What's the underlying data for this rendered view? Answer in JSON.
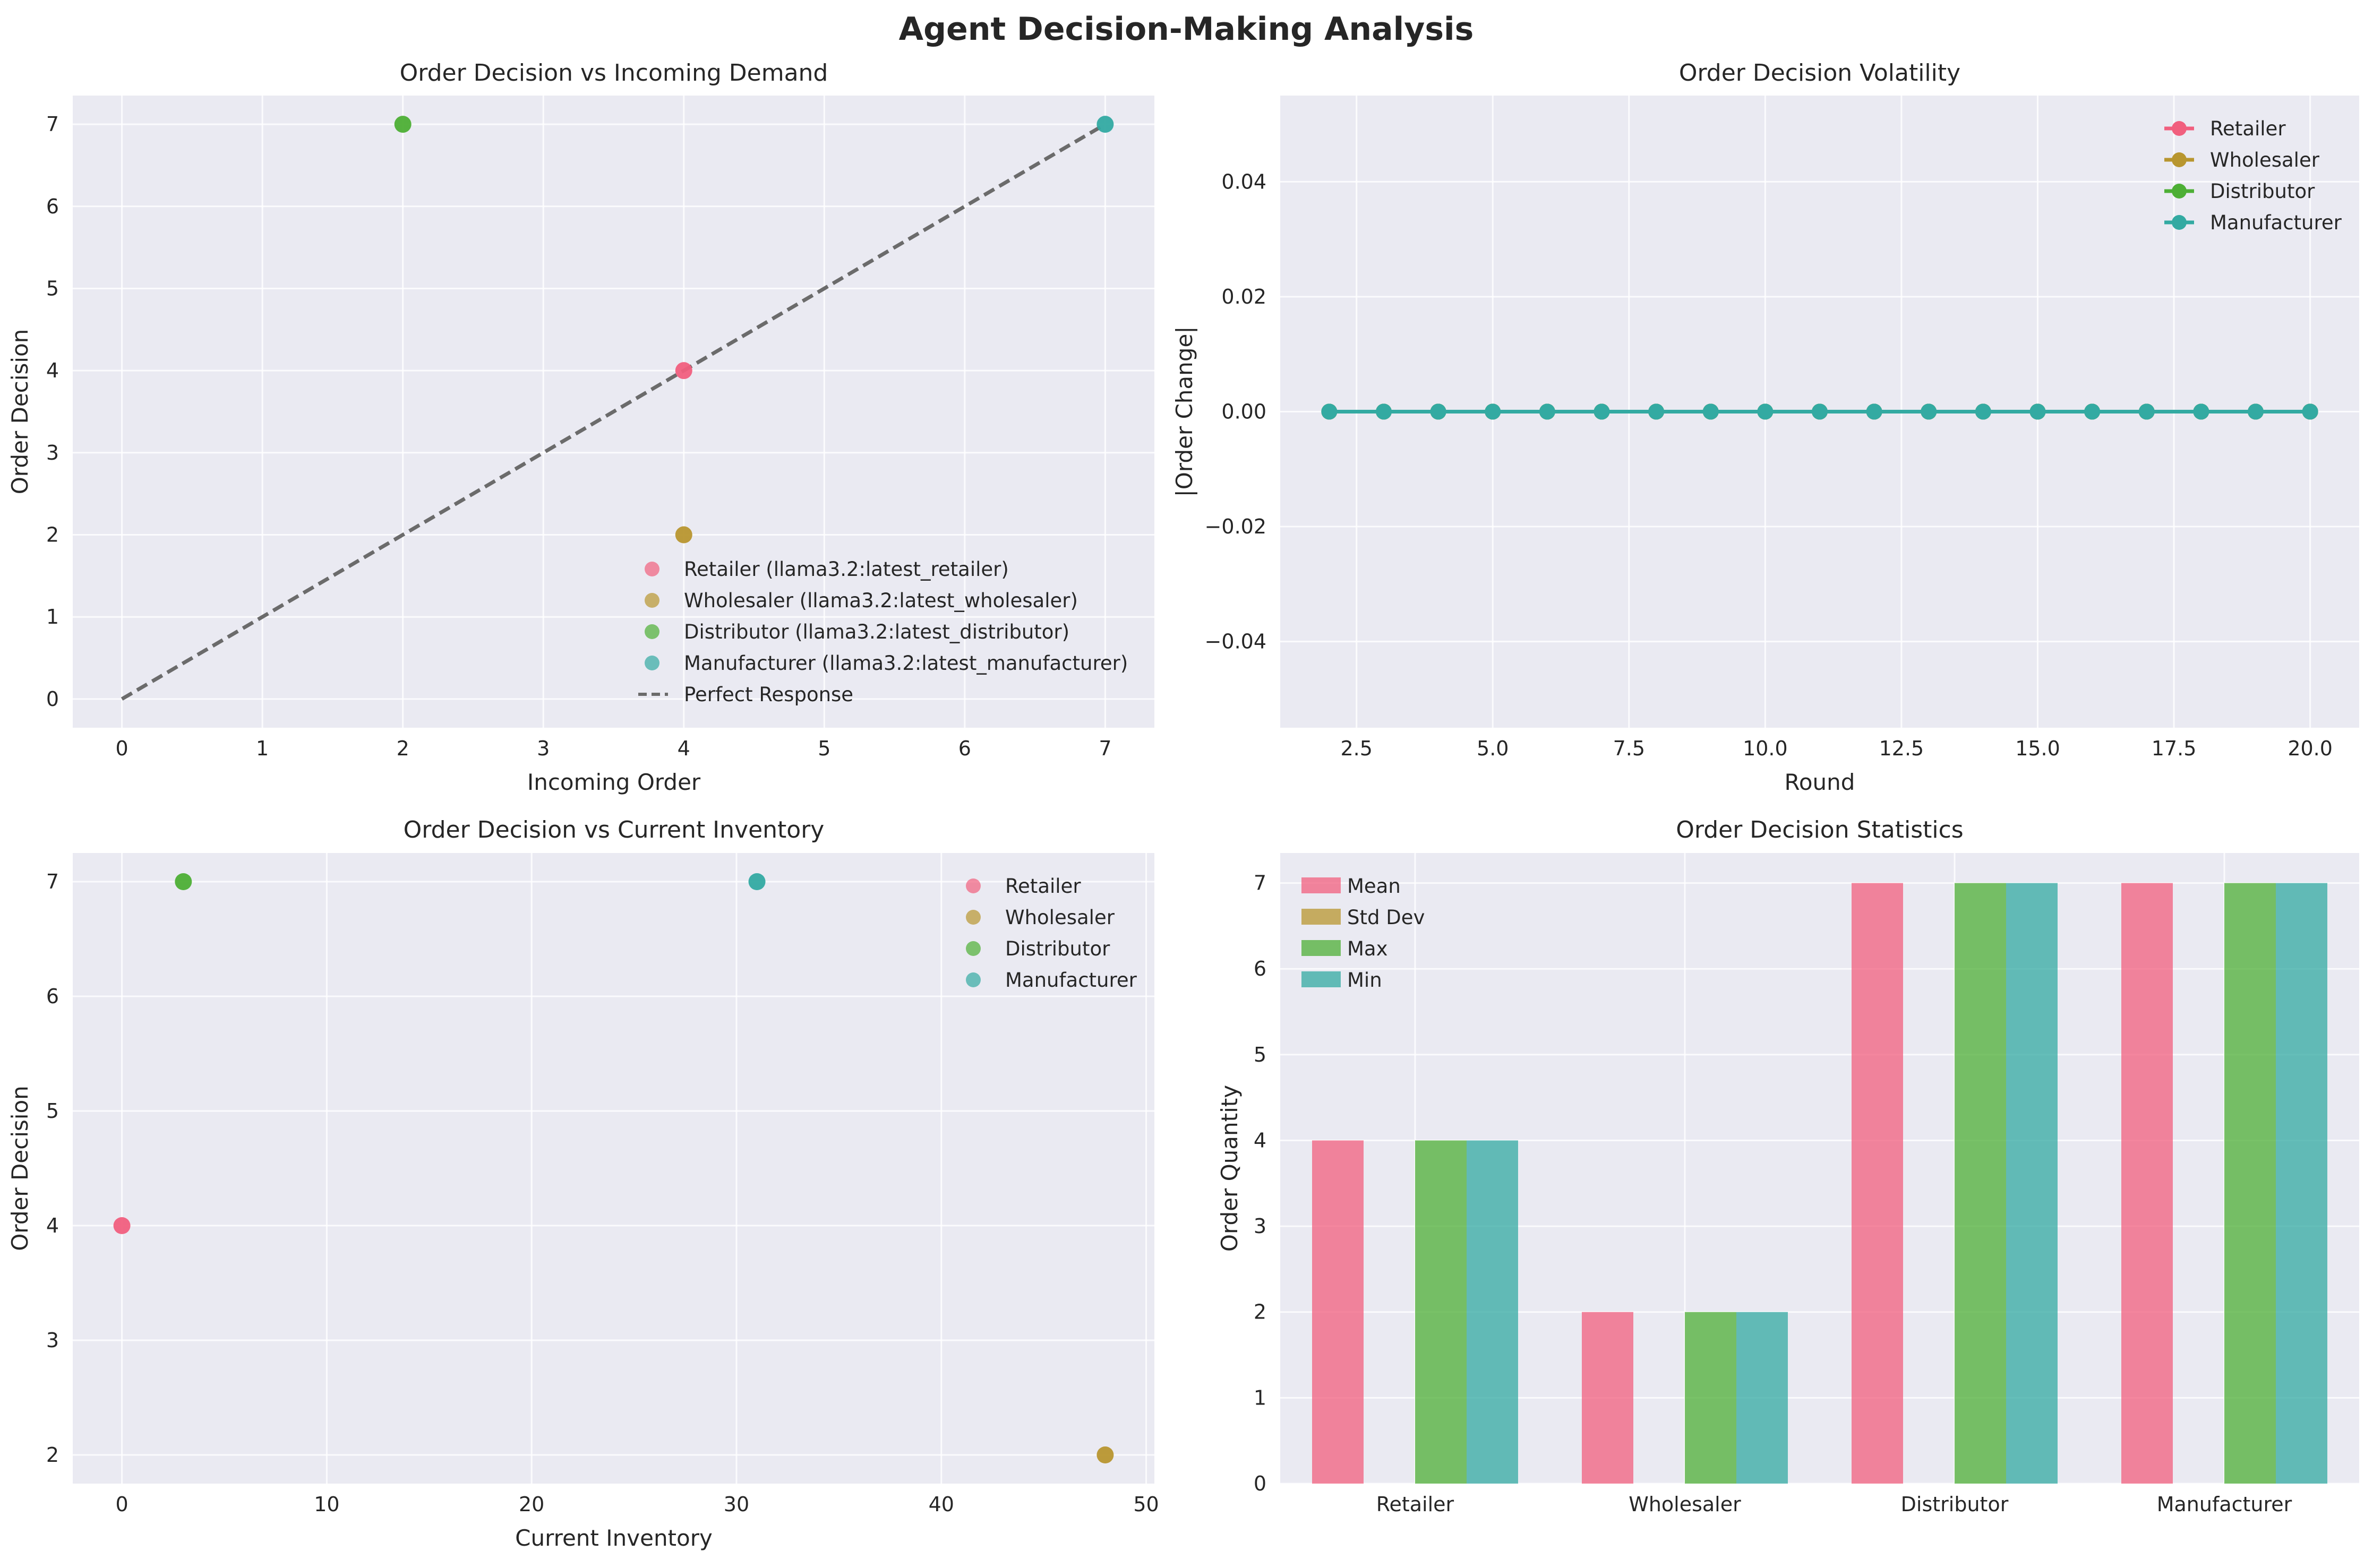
{
  "figure": {
    "title": "Agent Decision-Making Analysis"
  },
  "colors": {
    "axes_bg": "#eaeaf2",
    "grid": "#ffffff",
    "retailer": "#f15f7e",
    "wholesaler": "#b8962f",
    "distributor": "#4daf35",
    "manufacturer": "#33aaa2",
    "perfect_response": "#6b6b6b"
  },
  "chart_data": [
    {
      "id": "p1",
      "type": "scatter",
      "title": "Order Decision vs Incoming Demand",
      "xlabel": "Incoming Order",
      "ylabel": "Order Decision",
      "xlim": [
        -0.35,
        7.35
      ],
      "ylim": [
        -0.35,
        7.35
      ],
      "xticks": [
        0,
        1,
        2,
        3,
        4,
        5,
        6,
        7
      ],
      "yticks": [
        0,
        1,
        2,
        3,
        4,
        5,
        6,
        7
      ],
      "tick_labels_x": [
        "0",
        "1",
        "2",
        "3",
        "4",
        "5",
        "6",
        "7"
      ],
      "tick_labels_y": [
        "0",
        "1",
        "2",
        "3",
        "4",
        "5",
        "6",
        "7"
      ],
      "grid": true,
      "legend_position": "lower-right",
      "series": [
        {
          "name": "Retailer (llama3.2:latest_retailer)",
          "color_key": "retailer",
          "points": [
            [
              4,
              4
            ]
          ]
        },
        {
          "name": "Wholesaler (llama3.2:latest_wholesaler)",
          "color_key": "wholesaler",
          "points": [
            [
              4,
              2
            ]
          ]
        },
        {
          "name": "Distributor (llama3.2:latest_distributor)",
          "color_key": "distributor",
          "points": [
            [
              2,
              7
            ]
          ]
        },
        {
          "name": "Manufacturer (llama3.2:latest_manufacturer)",
          "color_key": "manufacturer",
          "points": [
            [
              7,
              7
            ]
          ]
        }
      ],
      "reference_line": {
        "name": "Perfect Response",
        "style": "dashed",
        "points": [
          [
            0,
            0
          ],
          [
            7,
            7
          ]
        ]
      }
    },
    {
      "id": "p2",
      "type": "line",
      "title": "Order Decision Volatility",
      "xlabel": "Round",
      "ylabel": "|Order Change|",
      "xlim": [
        1.1,
        20.9
      ],
      "ylim": [
        -0.055,
        0.055
      ],
      "xticks": [
        2.5,
        5.0,
        7.5,
        10.0,
        12.5,
        15.0,
        17.5,
        20.0
      ],
      "yticks": [
        -0.04,
        -0.02,
        0.0,
        0.02,
        0.04
      ],
      "tick_labels_x": [
        "2.5",
        "5.0",
        "7.5",
        "10.0",
        "12.5",
        "15.0",
        "17.5",
        "20.0"
      ],
      "tick_labels_y": [
        "−0.04",
        "−0.02",
        "0.00",
        "0.02",
        "0.04"
      ],
      "grid": true,
      "legend_position": "upper-right",
      "x": [
        2,
        3,
        4,
        5,
        6,
        7,
        8,
        9,
        10,
        11,
        12,
        13,
        14,
        15,
        16,
        17,
        18,
        19,
        20
      ],
      "series": [
        {
          "name": "Retailer",
          "color_key": "retailer",
          "values": [
            0,
            0,
            0,
            0,
            0,
            0,
            0,
            0,
            0,
            0,
            0,
            0,
            0,
            0,
            0,
            0,
            0,
            0,
            0
          ]
        },
        {
          "name": "Wholesaler",
          "color_key": "wholesaler",
          "values": [
            0,
            0,
            0,
            0,
            0,
            0,
            0,
            0,
            0,
            0,
            0,
            0,
            0,
            0,
            0,
            0,
            0,
            0,
            0
          ]
        },
        {
          "name": "Distributor",
          "color_key": "distributor",
          "values": [
            0,
            0,
            0,
            0,
            0,
            0,
            0,
            0,
            0,
            0,
            0,
            0,
            0,
            0,
            0,
            0,
            0,
            0,
            0
          ]
        },
        {
          "name": "Manufacturer",
          "color_key": "manufacturer",
          "values": [
            0,
            0,
            0,
            0,
            0,
            0,
            0,
            0,
            0,
            0,
            0,
            0,
            0,
            0,
            0,
            0,
            0,
            0,
            0
          ]
        }
      ]
    },
    {
      "id": "p3",
      "type": "scatter",
      "title": "Order Decision vs Current Inventory",
      "xlabel": "Current Inventory",
      "ylabel": "Order Decision",
      "xlim": [
        -2.4,
        50.4
      ],
      "ylim": [
        1.75,
        7.25
      ],
      "xticks": [
        0,
        10,
        20,
        30,
        40,
        50
      ],
      "yticks": [
        2,
        3,
        4,
        5,
        6,
        7
      ],
      "tick_labels_x": [
        "0",
        "10",
        "20",
        "30",
        "40",
        "50"
      ],
      "tick_labels_y": [
        "2",
        "3",
        "4",
        "5",
        "6",
        "7"
      ],
      "grid": true,
      "legend_position": "upper-right",
      "series": [
        {
          "name": "Retailer",
          "color_key": "retailer",
          "points": [
            [
              0,
              4
            ]
          ]
        },
        {
          "name": "Wholesaler",
          "color_key": "wholesaler",
          "points": [
            [
              48,
              2
            ]
          ]
        },
        {
          "name": "Distributor",
          "color_key": "distributor",
          "points": [
            [
              3,
              7
            ]
          ]
        },
        {
          "name": "Manufacturer",
          "color_key": "manufacturer",
          "points": [
            [
              31,
              7
            ]
          ]
        }
      ]
    },
    {
      "id": "p4",
      "type": "bar",
      "title": "Order Decision Statistics",
      "xlabel": "",
      "ylabel": "Order Quantity",
      "ylim": [
        0,
        7.35
      ],
      "yticks": [
        0,
        1,
        2,
        3,
        4,
        5,
        6,
        7
      ],
      "tick_labels_y": [
        "0",
        "1",
        "2",
        "3",
        "4",
        "5",
        "6",
        "7"
      ],
      "grid": true,
      "legend_position": "upper-left",
      "categories": [
        "Retailer",
        "Wholesaler",
        "Distributor",
        "Manufacturer"
      ],
      "series": [
        {
          "name": "Mean",
          "color_key": "retailer",
          "values": [
            4,
            2,
            7,
            7
          ]
        },
        {
          "name": "Std Dev",
          "color_key": "wholesaler",
          "values": [
            0,
            0,
            0,
            0
          ]
        },
        {
          "name": "Max",
          "color_key": "distributor",
          "values": [
            4,
            2,
            7,
            7
          ]
        },
        {
          "name": "Min",
          "color_key": "manufacturer",
          "values": [
            4,
            2,
            7,
            7
          ]
        }
      ]
    }
  ]
}
